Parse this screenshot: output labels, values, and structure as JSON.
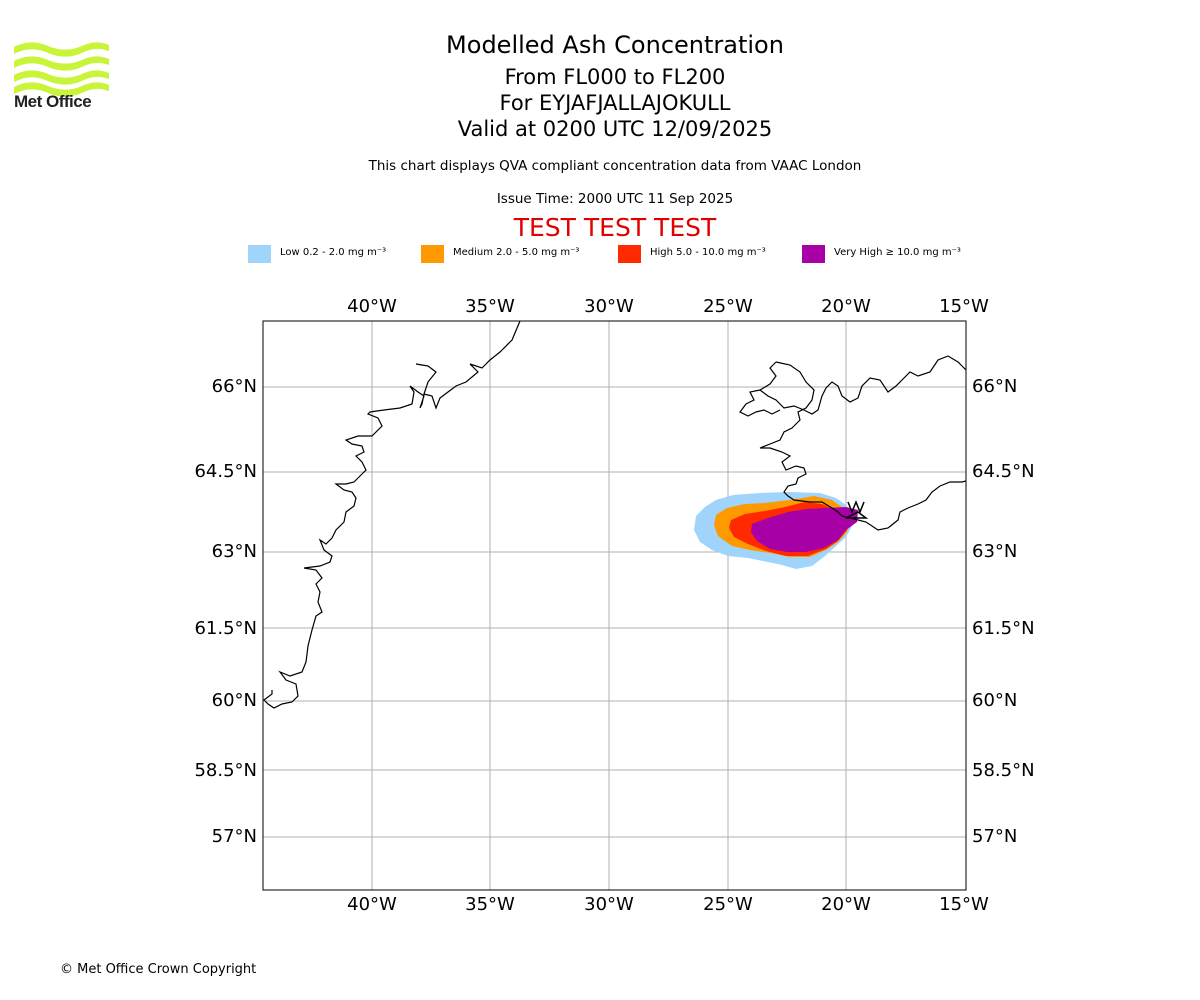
{
  "header": {
    "logo_text": "Met Office",
    "title": "Modelled Ash Concentration",
    "line2": "From FL000 to FL200",
    "line3": "For EYJAFJALLAJOKULL",
    "line4": "Valid at 0200 UTC 12/09/2025",
    "note": "This chart displays QVA compliant concentration data from VAAC London",
    "issue_time": "Issue Time: 2000 UTC 11 Sep 2025",
    "test_banner": "TEST TEST TEST"
  },
  "legend": [
    {
      "label": "Low 0.2 - 2.0 mg m⁻³",
      "color": "#a0d4fa"
    },
    {
      "label": "Medium 2.0 - 5.0 mg m⁻³",
      "color": "#ff9900"
    },
    {
      "label": "High 5.0 - 10.0 mg m⁻³",
      "color": "#ff2a00"
    },
    {
      "label": "Very High ≥ 10.0 mg m⁻³",
      "color": "#a700a7"
    }
  ],
  "map": {
    "lon_ticks": [
      "40°W",
      "35°W",
      "30°W",
      "25°W",
      "20°W",
      "15°W"
    ],
    "lat_ticks": [
      "66°N",
      "64.5°N",
      "63°N",
      "61.5°N",
      "60°N",
      "58.5°N",
      "57°N"
    ],
    "lon_range": [
      -44.6,
      -15.0
    ],
    "lat_range": [
      55.95,
      67.15
    ],
    "volcano": "EYJAFJALLAJOKULL",
    "grid": true,
    "coastline_color": "#000000",
    "grid_color": "#b0b0b0"
  },
  "footer": {
    "copyright": "© Met Office Crown Copyright"
  }
}
